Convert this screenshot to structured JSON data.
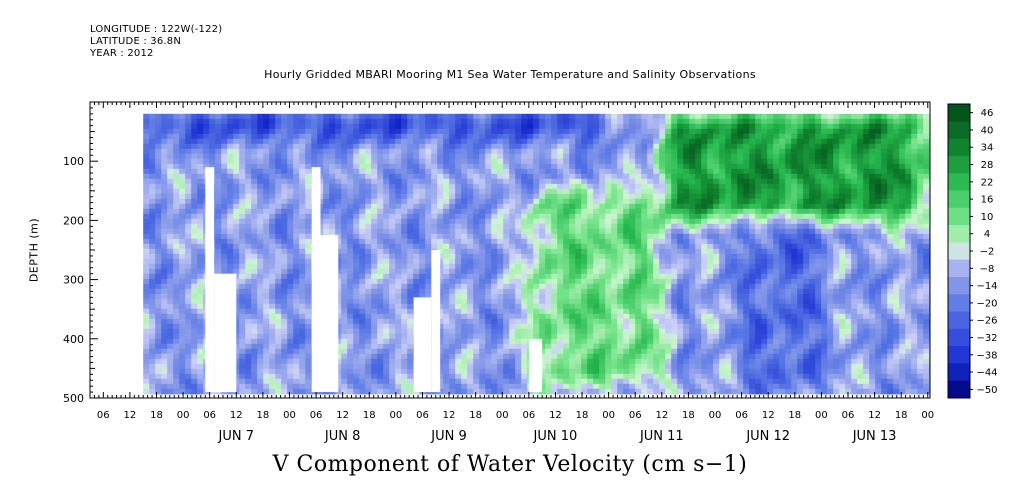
{
  "header": {
    "longitude": "LONGITUDE : 122W(-122)",
    "latitude": "LATITUDE : 36.8N",
    "year": "YEAR : 2012"
  },
  "chart_data": {
    "type": "heatmap",
    "title": "Hourly Gridded MBARI Mooring M1 Sea Water Temperature and Salinity Observations",
    "xlabel": "V Component of Water Velocity (cm s−1)",
    "ylabel": "DEPTH (m)",
    "y_axis": {
      "range": [
        0,
        500
      ],
      "inverted": true,
      "ticks": [
        100,
        200,
        300,
        400,
        500
      ]
    },
    "x_axis": {
      "start": "2012-06-06T03:00",
      "end": "2012-06-14T00:30",
      "hour_tick_labels": [
        "06",
        "12",
        "18",
        "00",
        "06",
        "12",
        "18",
        "00",
        "06",
        "12",
        "18",
        "00",
        "06",
        "12",
        "18",
        "00",
        "06",
        "12",
        "18",
        "00",
        "06",
        "12",
        "18",
        "00",
        "06",
        "12",
        "18",
        "00",
        "06",
        "12",
        "18",
        "00"
      ],
      "day_labels": [
        "JUN  7",
        "JUN  8",
        "JUN  9",
        "JUN 10",
        "JUN 11",
        "JUN 12",
        "JUN 13"
      ]
    },
    "colorbar": {
      "labels": [
        "46",
        "40",
        "34",
        "28",
        "22",
        "16",
        "10",
        "4",
        "−2",
        "−8",
        "−14",
        "−20",
        "−26",
        "−32",
        "−38",
        "−44",
        "−50"
      ],
      "range": [
        -50,
        50
      ]
    },
    "data_coverage": {
      "top_depth_m": 20,
      "bottom_depth_m": 485,
      "first_obs": "2012-06-06T15:00"
    },
    "gaps": [
      {
        "start": "2012-06-07T05:00",
        "end": "2012-06-07T07:00",
        "top_m": 110,
        "bottom_m": 490
      },
      {
        "start": "2012-06-07T07:00",
        "end": "2012-06-07T12:00",
        "top_m": 290,
        "bottom_m": 490
      },
      {
        "start": "2012-06-08T05:00",
        "end": "2012-06-08T07:00",
        "top_m": 110,
        "bottom_m": 490
      },
      {
        "start": "2012-06-08T07:00",
        "end": "2012-06-08T11:00",
        "top_m": 225,
        "bottom_m": 490
      },
      {
        "start": "2012-06-09T04:00",
        "end": "2012-06-09T08:00",
        "top_m": 330,
        "bottom_m": 490
      },
      {
        "start": "2012-06-09T08:00",
        "end": "2012-06-09T10:00",
        "top_m": 250,
        "bottom_m": 490
      },
      {
        "start": "2012-06-10T06:00",
        "end": "2012-06-10T09:00",
        "top_m": 400,
        "bottom_m": 490
      }
    ],
    "patterns": [
      {
        "label": "weak negative (-10)",
        "value": -10,
        "region": "background"
      },
      {
        "label": "strong negative near surface",
        "value": -32,
        "start": "2012-06-06T12:00",
        "end": "2012-06-11T00:00",
        "top_m": 20,
        "bottom_m": 60
      },
      {
        "label": "positive band",
        "value": 12,
        "start": "2012-06-10T06:00",
        "end": "2012-06-11T12:00",
        "top_m": 150,
        "bottom_m": 480
      },
      {
        "label": "strong positive upper layer",
        "value": 30,
        "start": "2012-06-11T12:00",
        "end": "2012-06-14T00:00",
        "top_m": 20,
        "bottom_m": 200
      },
      {
        "label": "negative column",
        "value": -22,
        "start": "2012-06-12T06:00",
        "end": "2012-06-13T00:00",
        "top_m": 200,
        "bottom_m": 480
      }
    ]
  }
}
